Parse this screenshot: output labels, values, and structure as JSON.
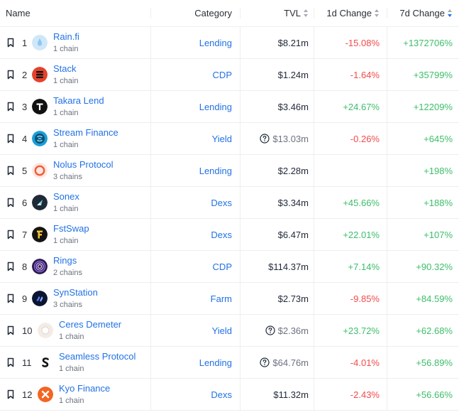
{
  "header": {
    "name": "Name",
    "category": "Category",
    "tvl": "TVL",
    "change_1d": "1d Change",
    "change_7d": "7d Change"
  },
  "rows": [
    {
      "rank": "1",
      "name": "Rain.fi",
      "chains": "1 chain",
      "category": "Lending",
      "tvl": "$8.21m",
      "tvl_note": false,
      "change_1d": "-15.08%",
      "change_7d": "+1372706%",
      "logo": "raindrop-icon",
      "logo_color": "#cfe7f8"
    },
    {
      "rank": "2",
      "name": "Stack",
      "chains": "1 chain",
      "category": "CDP",
      "tvl": "$1.24m",
      "tvl_note": false,
      "change_1d": "-1.64%",
      "change_7d": "+35799%",
      "logo": "stack-icon",
      "logo_color": "#e5412b"
    },
    {
      "rank": "3",
      "name": "Takara Lend",
      "chains": "1 chain",
      "category": "Lending",
      "tvl": "$3.46m",
      "tvl_note": false,
      "change_1d": "+24.67%",
      "change_7d": "+12209%",
      "logo": "takara-icon",
      "logo_color": "#111111"
    },
    {
      "rank": "4",
      "name": "Stream Finance",
      "chains": "1 chain",
      "category": "Yield",
      "tvl": "$13.03m",
      "tvl_note": true,
      "change_1d": "-0.26%",
      "change_7d": "+645%",
      "logo": "stream-icon",
      "logo_color": "#1a9fd8"
    },
    {
      "rank": "5",
      "name": "Nolus Protocol",
      "chains": "3 chains",
      "category": "Lending",
      "tvl": "$2.28m",
      "tvl_note": false,
      "change_1d": "",
      "change_7d": "+198%",
      "logo": "nolus-icon",
      "logo_color": "#ef5b3a"
    },
    {
      "rank": "6",
      "name": "Sonex",
      "chains": "1 chain",
      "category": "Dexs",
      "tvl": "$3.34m",
      "tvl_note": false,
      "change_1d": "+45.66%",
      "change_7d": "+188%",
      "logo": "sonex-icon",
      "logo_color": "#1e2a36"
    },
    {
      "rank": "7",
      "name": "FstSwap",
      "chains": "1 chain",
      "category": "Dexs",
      "tvl": "$6.47m",
      "tvl_note": false,
      "change_1d": "+22.01%",
      "change_7d": "+107%",
      "logo": "fstswap-icon",
      "logo_color": "#141414"
    },
    {
      "rank": "8",
      "name": "Rings",
      "chains": "2 chains",
      "category": "CDP",
      "tvl": "$114.37m",
      "tvl_note": false,
      "change_1d": "+7.14%",
      "change_7d": "+90.32%",
      "logo": "rings-icon",
      "logo_color": "#2b1a4d"
    },
    {
      "rank": "9",
      "name": "SynStation",
      "chains": "3 chains",
      "category": "Farm",
      "tvl": "$2.73m",
      "tvl_note": false,
      "change_1d": "-9.85%",
      "change_7d": "+84.59%",
      "logo": "synstation-icon",
      "logo_color": "#0b1430"
    },
    {
      "rank": "10",
      "name": "Ceres Demeter",
      "chains": "1 chain",
      "category": "Yield",
      "tvl": "$2.36m",
      "tvl_note": true,
      "change_1d": "+23.72%",
      "change_7d": "+62.68%",
      "logo": "ceres-icon",
      "logo_color": "#f3ece6"
    },
    {
      "rank": "11",
      "name": "Seamless Protocol",
      "chains": "1 chain",
      "category": "Lending",
      "tvl": "$64.76m",
      "tvl_note": true,
      "change_1d": "-4.01%",
      "change_7d": "+56.89%",
      "logo": "seamless-icon",
      "logo_color": "#ffffff"
    },
    {
      "rank": "12",
      "name": "Kyo Finance",
      "chains": "1 chain",
      "category": "Dexs",
      "tvl": "$11.32m",
      "tvl_note": false,
      "change_1d": "-2.43%",
      "change_7d": "+56.66%",
      "logo": "kyo-icon",
      "logo_color": "#f26522"
    }
  ],
  "colors": {
    "link": "#2172e5",
    "negative": "#f24b4b",
    "positive": "#3dbe6a"
  }
}
